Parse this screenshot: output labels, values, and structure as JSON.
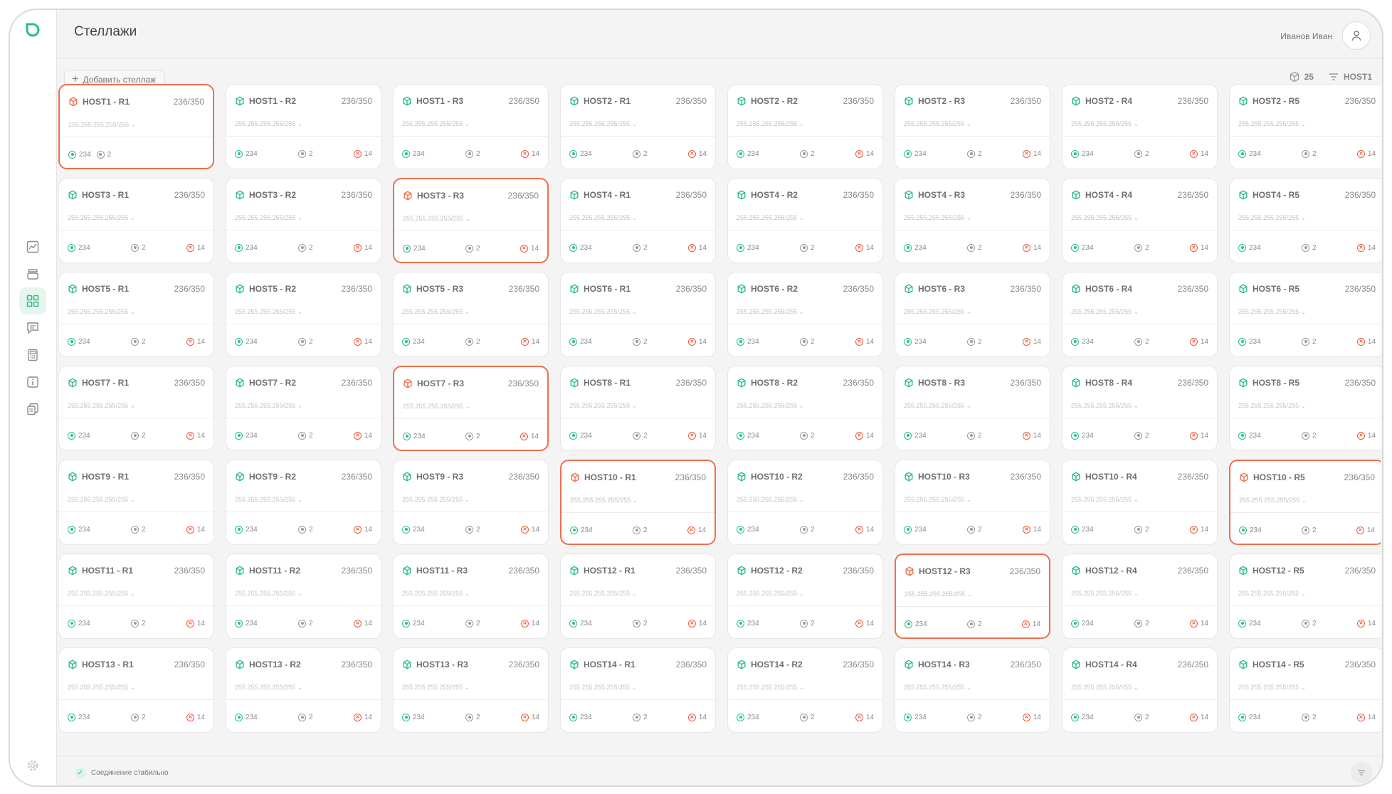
{
  "header": {
    "title": "Стеллажи",
    "user_name": "Иванов Иван",
    "icons": {
      "logo": "logo-icon",
      "avatar": "user-icon"
    }
  },
  "toolbar": {
    "add_label": "Добавить стеллаж",
    "total_count": "25",
    "filter_value": "HOST1"
  },
  "status": {
    "label": "Соединение стабильно"
  },
  "colors": {
    "accent": "#2bbf85",
    "alert": "#ee6f4d",
    "text": "#6f6f6f"
  },
  "sidebar": {
    "items": [
      {
        "name": "chart",
        "icon": "chart-icon",
        "active": false
      },
      {
        "name": "layers",
        "icon": "layers-icon",
        "active": false
      },
      {
        "name": "racks",
        "icon": "grid-icon",
        "active": true
      },
      {
        "name": "messages",
        "icon": "message-icon",
        "active": false
      },
      {
        "name": "calculator",
        "icon": "calculator-icon",
        "active": false
      },
      {
        "name": "info",
        "icon": "info-icon",
        "active": false
      },
      {
        "name": "documents",
        "icon": "document-icon",
        "active": false
      }
    ]
  },
  "racks": [
    {
      "name": "HOST1 - R1",
      "cap": "236/350",
      "ip": "255.255.255.255/255",
      "ok": "234",
      "mid": "2",
      "err": "",
      "alert": true
    },
    {
      "name": "HOST1 - R2",
      "cap": "236/350",
      "ip": "255.255.255.255/255",
      "ok": "234",
      "mid": "2",
      "err": "14",
      "alert": false
    },
    {
      "name": "HOST1 - R3",
      "cap": "236/350",
      "ip": "255.255.255.255/255",
      "ok": "234",
      "mid": "2",
      "err": "14",
      "alert": false
    },
    {
      "name": "HOST2 - R1",
      "cap": "236/350",
      "ip": "255.255.255.255/255",
      "ok": "234",
      "mid": "2",
      "err": "14",
      "alert": false
    },
    {
      "name": "HOST2 - R2",
      "cap": "236/350",
      "ip": "255.255.255.255/255",
      "ok": "234",
      "mid": "2",
      "err": "14",
      "alert": false
    },
    {
      "name": "HOST2 - R3",
      "cap": "236/350",
      "ip": "255.255.255.255/255",
      "ok": "234",
      "mid": "2",
      "err": "14",
      "alert": false
    },
    {
      "name": "HOST2 - R4",
      "cap": "236/350",
      "ip": "255.255.255.255/255",
      "ok": "234",
      "mid": "2",
      "err": "14",
      "alert": false
    },
    {
      "name": "HOST2 - R5",
      "cap": "236/350",
      "ip": "255.255.255.255/255",
      "ok": "234",
      "mid": "2",
      "err": "14",
      "alert": false
    },
    {
      "name": "HOST3 - R1",
      "cap": "236/350",
      "ip": "255.255.255.255/255",
      "ok": "234",
      "mid": "2",
      "err": "14",
      "alert": false
    },
    {
      "name": "HOST3 - R2",
      "cap": "236/350",
      "ip": "255.255.255.255/255",
      "ok": "234",
      "mid": "2",
      "err": "14",
      "alert": false
    },
    {
      "name": "HOST3 - R3",
      "cap": "236/350",
      "ip": "255.255.255.255/255",
      "ok": "234",
      "mid": "2",
      "err": "14",
      "alert": true
    },
    {
      "name": "HOST4 - R1",
      "cap": "236/350",
      "ip": "255.255.255.255/255",
      "ok": "234",
      "mid": "2",
      "err": "14",
      "alert": false
    },
    {
      "name": "HOST4 - R2",
      "cap": "236/350",
      "ip": "255.255.255.255/255",
      "ok": "234",
      "mid": "2",
      "err": "14",
      "alert": false
    },
    {
      "name": "HOST4 - R3",
      "cap": "236/350",
      "ip": "255.255.255.255/255",
      "ok": "234",
      "mid": "2",
      "err": "14",
      "alert": false
    },
    {
      "name": "HOST4 - R4",
      "cap": "236/350",
      "ip": "255.255.255.255/255",
      "ok": "234",
      "mid": "2",
      "err": "14",
      "alert": false
    },
    {
      "name": "HOST4 - R5",
      "cap": "236/350",
      "ip": "255.255.255.255/255",
      "ok": "234",
      "mid": "2",
      "err": "14",
      "alert": false
    },
    {
      "name": "HOST5 - R1",
      "cap": "236/350",
      "ip": "255.255.255.255/255",
      "ok": "234",
      "mid": "2",
      "err": "14",
      "alert": false
    },
    {
      "name": "HOST5 - R2",
      "cap": "236/350",
      "ip": "255.255.255.255/255",
      "ok": "234",
      "mid": "2",
      "err": "14",
      "alert": false
    },
    {
      "name": "HOST5 - R3",
      "cap": "236/350",
      "ip": "255.255.255.255/255",
      "ok": "234",
      "mid": "2",
      "err": "14",
      "alert": false
    },
    {
      "name": "HOST6 - R1",
      "cap": "236/350",
      "ip": "255.255.255.255/255",
      "ok": "234",
      "mid": "2",
      "err": "14",
      "alert": false
    },
    {
      "name": "HOST6 - R2",
      "cap": "236/350",
      "ip": "255.255.255.255/255",
      "ok": "234",
      "mid": "2",
      "err": "14",
      "alert": false
    },
    {
      "name": "HOST6 - R3",
      "cap": "236/350",
      "ip": "255.255.255.255/255",
      "ok": "234",
      "mid": "2",
      "err": "14",
      "alert": false
    },
    {
      "name": "HOST6 - R4",
      "cap": "236/350",
      "ip": "255.255.255.255/255",
      "ok": "234",
      "mid": "2",
      "err": "14",
      "alert": false
    },
    {
      "name": "HOST6 - R5",
      "cap": "236/350",
      "ip": "255.255.255.255/255",
      "ok": "234",
      "mid": "2",
      "err": "14",
      "alert": false
    },
    {
      "name": "HOST7 - R1",
      "cap": "236/350",
      "ip": "255.255.255.255/255",
      "ok": "234",
      "mid": "2",
      "err": "14",
      "alert": false
    },
    {
      "name": "HOST7 - R2",
      "cap": "236/350",
      "ip": "255.255.255.255/255",
      "ok": "234",
      "mid": "2",
      "err": "14",
      "alert": false
    },
    {
      "name": "HOST7 - R3",
      "cap": "236/350",
      "ip": "255.255.255.255/255",
      "ok": "234",
      "mid": "2",
      "err": "14",
      "alert": true
    },
    {
      "name": "HOST8 - R1",
      "cap": "236/350",
      "ip": "255.255.255.255/255",
      "ok": "234",
      "mid": "2",
      "err": "14",
      "alert": false
    },
    {
      "name": "HOST8 - R2",
      "cap": "236/350",
      "ip": "255.255.255.255/255",
      "ok": "234",
      "mid": "2",
      "err": "14",
      "alert": false
    },
    {
      "name": "HOST8 - R3",
      "cap": "236/350",
      "ip": "255.255.255.255/255",
      "ok": "234",
      "mid": "2",
      "err": "14",
      "alert": false
    },
    {
      "name": "HOST8 - R4",
      "cap": "236/350",
      "ip": "255.255.255.255/255",
      "ok": "234",
      "mid": "2",
      "err": "14",
      "alert": false
    },
    {
      "name": "HOST8 - R5",
      "cap": "236/350",
      "ip": "255.255.255.255/255",
      "ok": "234",
      "mid": "2",
      "err": "14",
      "alert": false
    },
    {
      "name": "HOST9 - R1",
      "cap": "236/350",
      "ip": "255.255.255.255/255",
      "ok": "234",
      "mid": "2",
      "err": "14",
      "alert": false
    },
    {
      "name": "HOST9 - R2",
      "cap": "236/350",
      "ip": "255.255.255.255/255",
      "ok": "234",
      "mid": "2",
      "err": "14",
      "alert": false
    },
    {
      "name": "HOST9 - R3",
      "cap": "236/350",
      "ip": "255.255.255.255/255",
      "ok": "234",
      "mid": "2",
      "err": "14",
      "alert": false
    },
    {
      "name": "HOST10 - R1",
      "cap": "236/350",
      "ip": "255.255.255.255/255",
      "ok": "234",
      "mid": "2",
      "err": "14",
      "alert": true
    },
    {
      "name": "HOST10 - R2",
      "cap": "236/350",
      "ip": "255.255.255.255/255",
      "ok": "234",
      "mid": "2",
      "err": "14",
      "alert": false
    },
    {
      "name": "HOST10 - R3",
      "cap": "236/350",
      "ip": "255.255.255.255/255",
      "ok": "234",
      "mid": "2",
      "err": "14",
      "alert": false
    },
    {
      "name": "HOST10 - R4",
      "cap": "236/350",
      "ip": "255.255.255.255/255",
      "ok": "234",
      "mid": "2",
      "err": "14",
      "alert": false
    },
    {
      "name": "HOST10 - R5",
      "cap": "236/350",
      "ip": "255.255.255.255/255",
      "ok": "234",
      "mid": "2",
      "err": "14",
      "alert": true
    },
    {
      "name": "HOST11 - R1",
      "cap": "236/350",
      "ip": "255.255.255.255/255",
      "ok": "234",
      "mid": "2",
      "err": "14",
      "alert": false
    },
    {
      "name": "HOST11 - R2",
      "cap": "236/350",
      "ip": "255.255.255.255/255",
      "ok": "234",
      "mid": "2",
      "err": "14",
      "alert": false
    },
    {
      "name": "HOST11 - R3",
      "cap": "236/350",
      "ip": "255.255.255.255/255",
      "ok": "234",
      "mid": "2",
      "err": "14",
      "alert": false
    },
    {
      "name": "HOST12 - R1",
      "cap": "236/350",
      "ip": "255.255.255.255/255",
      "ok": "234",
      "mid": "2",
      "err": "14",
      "alert": false
    },
    {
      "name": "HOST12 - R2",
      "cap": "236/350",
      "ip": "255.255.255.255/255",
      "ok": "234",
      "mid": "2",
      "err": "14",
      "alert": false
    },
    {
      "name": "HOST12 - R3",
      "cap": "236/350",
      "ip": "255.255.255.255/255",
      "ok": "234",
      "mid": "2",
      "err": "14",
      "alert": true
    },
    {
      "name": "HOST12 - R4",
      "cap": "236/350",
      "ip": "255.255.255.255/255",
      "ok": "234",
      "mid": "2",
      "err": "14",
      "alert": false
    },
    {
      "name": "HOST12 - R5",
      "cap": "236/350",
      "ip": "255.255.255.255/255",
      "ok": "234",
      "mid": "2",
      "err": "14",
      "alert": false
    },
    {
      "name": "HOST13 - R1",
      "cap": "236/350",
      "ip": "255.255.255.255/255",
      "ok": "234",
      "mid": "2",
      "err": "14",
      "alert": false
    },
    {
      "name": "HOST13 - R2",
      "cap": "236/350",
      "ip": "255.255.255.255/255",
      "ok": "234",
      "mid": "2",
      "err": "14",
      "alert": false
    },
    {
      "name": "HOST13 - R3",
      "cap": "236/350",
      "ip": "255.255.255.255/255",
      "ok": "234",
      "mid": "2",
      "err": "14",
      "alert": false
    },
    {
      "name": "HOST14 - R1",
      "cap": "236/350",
      "ip": "255.255.255.255/255",
      "ok": "234",
      "mid": "2",
      "err": "14",
      "alert": false
    },
    {
      "name": "HOST14 - R2",
      "cap": "236/350",
      "ip": "255.255.255.255/255",
      "ok": "234",
      "mid": "2",
      "err": "14",
      "alert": false
    },
    {
      "name": "HOST14 - R3",
      "cap": "236/350",
      "ip": "255.255.255.255/255",
      "ok": "234",
      "mid": "2",
      "err": "14",
      "alert": false
    },
    {
      "name": "HOST14 - R4",
      "cap": "236/350",
      "ip": "255.255.255.255/255",
      "ok": "234",
      "mid": "2",
      "err": "14",
      "alert": false
    },
    {
      "name": "HOST14 - R5",
      "cap": "236/350",
      "ip": "255.255.255.255/255",
      "ok": "234",
      "mid": "2",
      "err": "14",
      "alert": false
    }
  ]
}
